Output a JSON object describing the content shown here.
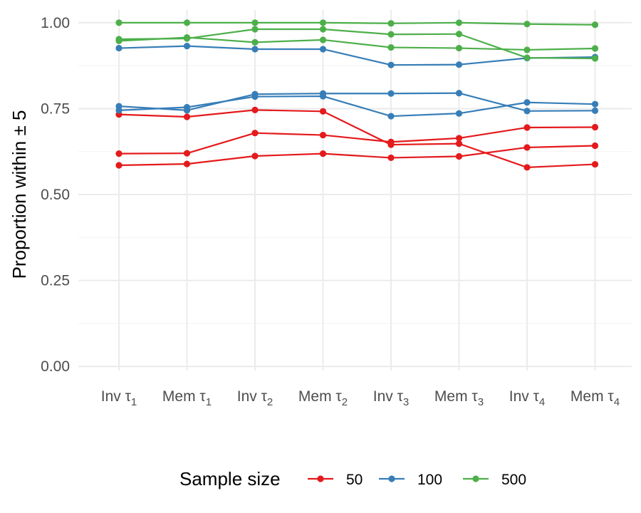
{
  "chart_data": {
    "type": "line",
    "ylabel": "Proportion within ± 5",
    "xlabel": "",
    "categories": [
      "Inv τ1",
      "Mem τ1",
      "Inv τ2",
      "Mem τ2",
      "Inv τ3",
      "Mem τ3",
      "Inv τ4",
      "Mem τ4"
    ],
    "x_ticks": [
      {
        "base": "Inv τ",
        "sub": "1"
      },
      {
        "base": "Mem τ",
        "sub": "1"
      },
      {
        "base": "Inv τ",
        "sub": "2"
      },
      {
        "base": "Mem τ",
        "sub": "2"
      },
      {
        "base": "Inv τ",
        "sub": "3"
      },
      {
        "base": "Mem τ",
        "sub": "3"
      },
      {
        "base": "Inv τ",
        "sub": "4"
      },
      {
        "base": "Mem τ",
        "sub": "4"
      }
    ],
    "y_ticks": [
      "0.00",
      "0.25",
      "0.50",
      "0.75",
      "1.00"
    ],
    "ylim": [
      -0.012,
      1.037
    ],
    "grid": true,
    "legend": {
      "title": "Sample size",
      "position": "bottom",
      "entries": [
        {
          "label": "50",
          "color": "#e41a1c"
        },
        {
          "label": "100",
          "color": "#377eb8"
        },
        {
          "label": "500",
          "color": "#4daf4a"
        }
      ]
    },
    "series": [
      {
        "group": "50",
        "color": "#e41a1c",
        "values": [
          0.733,
          0.726,
          0.746,
          0.742,
          0.645,
          0.648,
          0.579,
          0.588
        ]
      },
      {
        "group": "50",
        "color": "#e41a1c",
        "values": [
          0.619,
          0.62,
          0.679,
          0.673,
          0.653,
          0.664,
          0.695,
          0.696
        ]
      },
      {
        "group": "50",
        "color": "#e41a1c",
        "values": [
          0.585,
          0.589,
          0.612,
          0.619,
          0.607,
          0.611,
          0.637,
          0.642
        ]
      },
      {
        "group": "100",
        "color": "#377eb8",
        "values": [
          0.926,
          0.932,
          0.923,
          0.923,
          0.877,
          0.878,
          0.897,
          0.9
        ]
      },
      {
        "group": "100",
        "color": "#377eb8",
        "values": [
          0.757,
          0.745,
          0.792,
          0.794,
          0.794,
          0.795,
          0.743,
          0.744
        ]
      },
      {
        "group": "100",
        "color": "#377eb8",
        "values": [
          0.745,
          0.754,
          0.785,
          0.786,
          0.728,
          0.736,
          0.768,
          0.763
        ]
      },
      {
        "group": "500",
        "color": "#4daf4a",
        "values": [
          1.0,
          1.0,
          1.0,
          1.0,
          0.998,
          1.0,
          0.996,
          0.994
        ]
      },
      {
        "group": "500",
        "color": "#4daf4a",
        "values": [
          0.952,
          0.954,
          0.981,
          0.981,
          0.966,
          0.967,
          0.898,
          0.896
        ]
      },
      {
        "group": "500",
        "color": "#4daf4a",
        "values": [
          0.947,
          0.957,
          0.943,
          0.95,
          0.928,
          0.926,
          0.921,
          0.925
        ]
      }
    ]
  }
}
